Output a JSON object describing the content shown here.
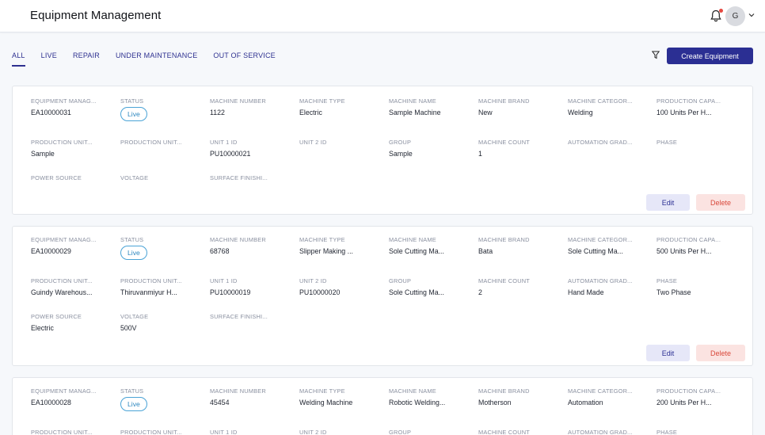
{
  "app": {
    "title": "Equipment Management",
    "avatar_initial": "G"
  },
  "tabs": [
    {
      "label": "ALL",
      "active": true
    },
    {
      "label": "LIVE",
      "active": false
    },
    {
      "label": "REPAIR",
      "active": false
    },
    {
      "label": "UNDER MAINTENANCE",
      "active": false
    },
    {
      "label": "OUT OF SERVICE",
      "active": false
    }
  ],
  "toolbar": {
    "create_label": "Create Equipment"
  },
  "labels": {
    "equipment_manager": "EQUIPMENT MANAG...",
    "status": "STATUS",
    "machine_number": "MACHINE NUMBER",
    "machine_type": "MACHINE TYPE",
    "machine_name": "MACHINE NAME",
    "machine_brand": "MACHINE BRAND",
    "machine_category": "MACHINE CATEGOR...",
    "production_capacity": "PRODUCTION CAPA...",
    "production_unit_1": "PRODUCTION UNIT...",
    "production_unit_2": "PRODUCTION UNIT...",
    "unit_1_id": "UNIT 1 ID",
    "unit_2_id": "UNIT 2 ID",
    "group": "GROUP",
    "machine_count": "MACHINE COUNT",
    "automation_grade": "AUTOMATION GRAD...",
    "phase": "PHASE",
    "power_source": "POWER SOURCE",
    "voltage": "VOLTAGE",
    "surface_finish": "SURFACE FINISHI..."
  },
  "actions": {
    "edit": "Edit",
    "delete": "Delete"
  },
  "cards": [
    {
      "equipment_manager": "EA10000031",
      "status": "Live",
      "machine_number": "1122",
      "machine_type": "Electric",
      "machine_name": "Sample Machine",
      "machine_brand": "New",
      "machine_category": "Welding",
      "production_capacity": "100 Units Per H...",
      "production_unit_1": "Sample",
      "production_unit_2": "",
      "unit_1_id": "PU10000021",
      "unit_2_id": "",
      "group": "Sample",
      "machine_count": "1",
      "automation_grade": "",
      "phase": "",
      "power_source": "",
      "voltage": "",
      "surface_finish": ""
    },
    {
      "equipment_manager": "EA10000029",
      "status": "Live",
      "machine_number": "68768",
      "machine_type": "Slipper Making ...",
      "machine_name": "Sole Cutting Ma...",
      "machine_brand": "Bata",
      "machine_category": "Sole Cutting Ma...",
      "production_capacity": "500 Units Per H...",
      "production_unit_1": "Guindy Warehous...",
      "production_unit_2": "Thiruvanmiyur H...",
      "unit_1_id": "PU10000019",
      "unit_2_id": "PU10000020",
      "group": "Sole Cutting Ma...",
      "machine_count": "2",
      "automation_grade": "Hand Made",
      "phase": "Two Phase",
      "power_source": "Electric",
      "voltage": "500V",
      "surface_finish": ""
    },
    {
      "equipment_manager": "EA10000028",
      "status": "Live",
      "machine_number": "45454",
      "machine_type": "Welding Machine",
      "machine_name": "Robotic Welding...",
      "machine_brand": "Motherson",
      "machine_category": "Automation",
      "production_capacity": "200 Units Per H...",
      "production_unit_1": "",
      "production_unit_2": "",
      "unit_1_id": "",
      "unit_2_id": "",
      "group": "",
      "machine_count": "",
      "automation_grade": "",
      "phase": "",
      "power_source": "",
      "voltage": "",
      "surface_finish": ""
    }
  ]
}
